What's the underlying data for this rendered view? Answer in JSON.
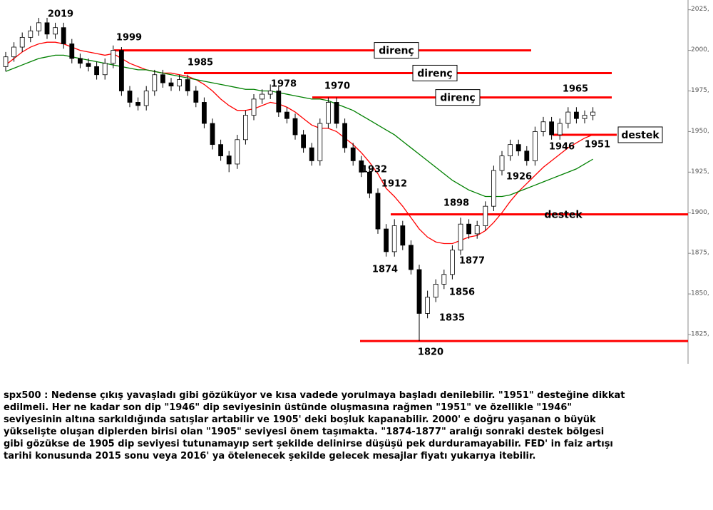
{
  "chart_data": {
    "type": "candlestick",
    "ylim": [
      1807,
      2031
    ],
    "yticks": [
      {
        "value": 1825,
        "label": "1825,"
      },
      {
        "value": 1850,
        "label": "1850,"
      },
      {
        "value": 1875,
        "label": "1875,"
      },
      {
        "value": 1900,
        "label": "1900,"
      },
      {
        "value": 1925,
        "label": "1925,"
      },
      {
        "value": 1950,
        "label": "1950,"
      },
      {
        "value": 1975,
        "label": "1975,"
      },
      {
        "value": 2000,
        "label": "2000,"
      },
      {
        "value": 2025,
        "label": "2025,"
      }
    ],
    "up_color": "#ffffff",
    "down_color": "#000000",
    "open": [
      1990,
      1996,
      2002,
      2008,
      2012,
      2017,
      2010,
      2014,
      2004,
      1995,
      1992,
      1990,
      1985,
      1992,
      2000,
      1975,
      1968,
      1966,
      1975,
      1985,
      1980,
      1978,
      1982,
      1975,
      1968,
      1955,
      1942,
      1935,
      1930,
      1945,
      1960,
      1970,
      1973,
      1975,
      1962,
      1958,
      1948,
      1940,
      1932,
      1955,
      1968,
      1955,
      1940,
      1932,
      1925,
      1912,
      1890,
      1876,
      1892,
      1880,
      1865,
      1838,
      1848,
      1856,
      1862,
      1877,
      1893,
      1887,
      1892,
      1904,
      1926,
      1935,
      1942,
      1938,
      1932,
      1950,
      1956,
      1948,
      1955,
      1962,
      1958,
      1960
    ],
    "high": [
      1999,
      2005,
      2011,
      2015,
      2020,
      2020,
      2017,
      2017,
      2007,
      1998,
      1995,
      1993,
      1995,
      2003,
      2002,
      1978,
      1971,
      1978,
      1988,
      1988,
      1983,
      1985,
      1985,
      1978,
      1971,
      1958,
      1945,
      1938,
      1948,
      1963,
      1973,
      1976,
      1979,
      1978,
      1965,
      1961,
      1951,
      1943,
      1958,
      1971,
      1971,
      1958,
      1943,
      1935,
      1928,
      1915,
      1893,
      1896,
      1895,
      1883,
      1868,
      1852,
      1859,
      1865,
      1880,
      1897,
      1896,
      1895,
      1907,
      1929,
      1938,
      1945,
      1945,
      1941,
      1953,
      1959,
      1959,
      1958,
      1965,
      1965,
      1963,
      1965
    ],
    "low": [
      1987,
      1993,
      1999,
      2005,
      2009,
      2007,
      2007,
      2001,
      1992,
      1989,
      1987,
      1982,
      1982,
      1989,
      1972,
      1965,
      1963,
      1963,
      1972,
      1977,
      1975,
      1975,
      1972,
      1965,
      1952,
      1939,
      1932,
      1925,
      1927,
      1942,
      1957,
      1967,
      1970,
      1959,
      1955,
      1945,
      1937,
      1929,
      1929,
      1952,
      1952,
      1937,
      1929,
      1922,
      1909,
      1887,
      1873,
      1873,
      1877,
      1862,
      1821,
      1835,
      1845,
      1853,
      1859,
      1874,
      1884,
      1884,
      1889,
      1901,
      1923,
      1932,
      1935,
      1929,
      1929,
      1947,
      1945,
      1945,
      1952,
      1955,
      1955,
      1957
    ],
    "close": [
      1996,
      2002,
      2008,
      2012,
      2017,
      2010,
      2014,
      2004,
      1995,
      1992,
      1990,
      1985,
      1992,
      2000,
      1975,
      1968,
      1966,
      1975,
      1985,
      1980,
      1978,
      1982,
      1975,
      1968,
      1955,
      1942,
      1935,
      1930,
      1945,
      1960,
      1970,
      1973,
      1975,
      1962,
      1958,
      1948,
      1940,
      1932,
      1955,
      1968,
      1955,
      1940,
      1932,
      1925,
      1912,
      1890,
      1876,
      1892,
      1880,
      1865,
      1838,
      1848,
      1856,
      1862,
      1877,
      1893,
      1887,
      1892,
      1904,
      1926,
      1935,
      1942,
      1938,
      1932,
      1950,
      1956,
      1948,
      1955,
      1962,
      1958,
      1960,
      1962
    ],
    "series": [
      {
        "color": "#ff0000",
        "values": [
          1991,
          1995,
          1999,
          2002,
          2004,
          2005,
          2005,
          2004,
          2002,
          2000,
          1999,
          1998,
          1997,
          1998,
          1995,
          1992,
          1990,
          1988,
          1987,
          1986,
          1986,
          1985,
          1984,
          1982,
          1979,
          1975,
          1970,
          1966,
          1963,
          1963,
          1964,
          1966,
          1968,
          1967,
          1965,
          1962,
          1958,
          1954,
          1952,
          1952,
          1950,
          1946,
          1942,
          1937,
          1931,
          1924,
          1915,
          1910,
          1904,
          1897,
          1890,
          1885,
          1882,
          1881,
          1881,
          1883,
          1885,
          1886,
          1889,
          1894,
          1900,
          1907,
          1913,
          1918,
          1923,
          1928,
          1932,
          1936,
          1940,
          1943,
          1946,
          1948
        ]
      },
      {
        "color": "#008000",
        "values": [
          1987,
          1989,
          1991,
          1993,
          1995,
          1996,
          1997,
          1997,
          1996,
          1995,
          1994,
          1993,
          1992,
          1991,
          1990,
          1989,
          1988,
          1988,
          1987,
          1986,
          1985,
          1984,
          1983,
          1982,
          1981,
          1980,
          1979,
          1978,
          1977,
          1976,
          1976,
          1975,
          1975,
          1974,
          1973,
          1972,
          1971,
          1970,
          1970,
          1969,
          1967,
          1965,
          1963,
          1960,
          1957,
          1954,
          1951,
          1948,
          1944,
          1940,
          1936,
          1932,
          1928,
          1924,
          1920,
          1917,
          1914,
          1912,
          1910,
          1910,
          1910,
          1911,
          1913,
          1915,
          1917,
          1919,
          1921,
          1923,
          1925,
          1927,
          1930,
          1933
        ]
      }
    ],
    "levels": [
      {
        "label": "direnç",
        "value": 2000
      },
      {
        "label": "direnç",
        "value": 1986
      },
      {
        "label": "direnç",
        "value": 1971
      },
      {
        "label": "destek",
        "value": 1948
      },
      {
        "label": "destek",
        "value": 1899
      },
      {
        "value": 1821
      }
    ],
    "level_color": "#ff0000",
    "annotations": [
      "2019",
      "1999",
      "1985",
      "1978",
      "1970",
      "1965",
      "1932",
      "1912",
      "1898",
      "1874",
      "1877",
      "1856",
      "1835",
      "1820",
      "1926",
      "1946",
      "1951"
    ],
    "text_lines": [
      "spx500 : Nedense çıkış yavaşladı gibi gözüküyor ve kısa vadede yorulmaya başladı denilebilir. \"1951\" desteğine dikkat",
      "edilmeli. Her ne kadar son dip \"1946\" dip seviyesinin üstünde oluşmasına rağmen \"1951\" ve özellikle \"1946\"",
      "seviyesinin altına sarkıldığında satışlar artabilir ve 1905' deki boşluk kapanabilir. 2000' e doğru yaşanan o büyük",
      "yükselişte oluşan diplerden birisi olan \"1905\" seviyesi önem taşımakta. \"1874-1877\" aralığı sonraki destek bölgesi",
      "gibi gözükse de 1905 dip seviyesi tutunamayıp sert şekilde delinirse düşüşü pek durduramayabilir. FED' in faiz artışı",
      "tarihi konusunda 2015 sonu veya 2016' ya ötelenecek şekilde gelecek mesajlar fiyatı yukarıya itebilir."
    ]
  }
}
